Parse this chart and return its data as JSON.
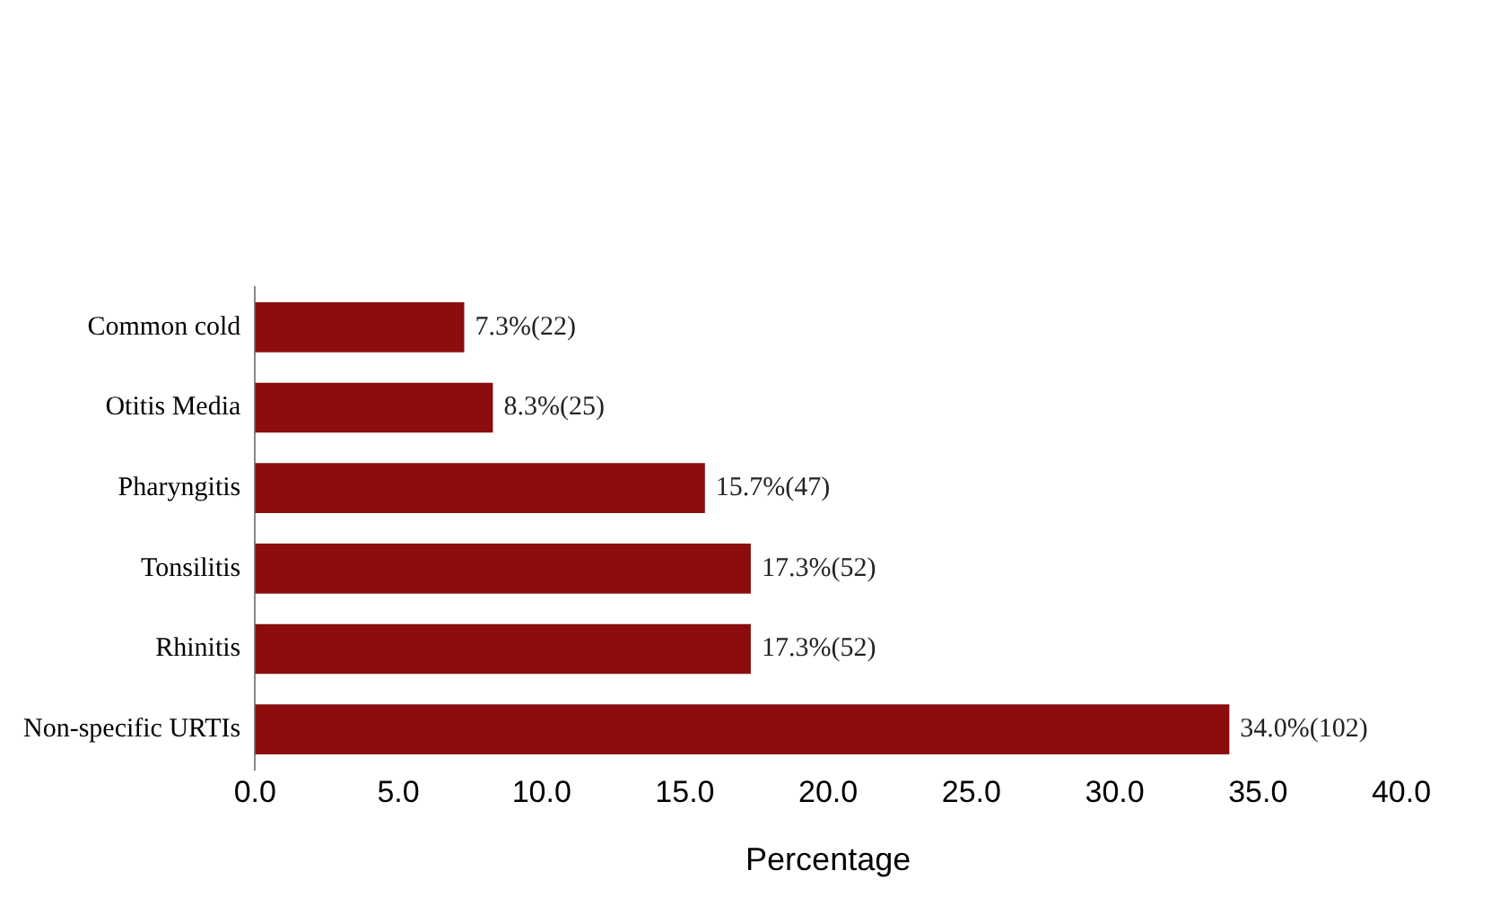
{
  "chart_data": {
    "type": "bar",
    "orientation": "horizontal",
    "xlabel": "Percentage",
    "categories": [
      "Common cold",
      "Otitis Media",
      "Pharyngitis",
      "Tonsilitis",
      "Rhinitis",
      "Non-specific URTIs"
    ],
    "values": [
      7.3,
      8.3,
      15.7,
      17.3,
      17.3,
      34.0
    ],
    "value_labels": [
      "7.3%(22)",
      "8.3%(25)",
      "15.7%(47)",
      "17.3%(52)",
      "17.3%(52)",
      "34.0%(102)"
    ],
    "color": "#8b0d0d",
    "xlim": [
      0,
      40
    ],
    "xticks": [
      {
        "value": 0,
        "label": "0.0"
      },
      {
        "value": 5,
        "label": "5.0"
      },
      {
        "value": 10,
        "label": "10.0"
      },
      {
        "value": 15,
        "label": "15.0"
      },
      {
        "value": 20,
        "label": "20.0"
      },
      {
        "value": 25,
        "label": "25.0"
      },
      {
        "value": 30,
        "label": "30.0"
      },
      {
        "value": 35,
        "label": "35.0"
      },
      {
        "value": 40,
        "label": "40.0"
      }
    ],
    "grid": false,
    "legend": false
  }
}
